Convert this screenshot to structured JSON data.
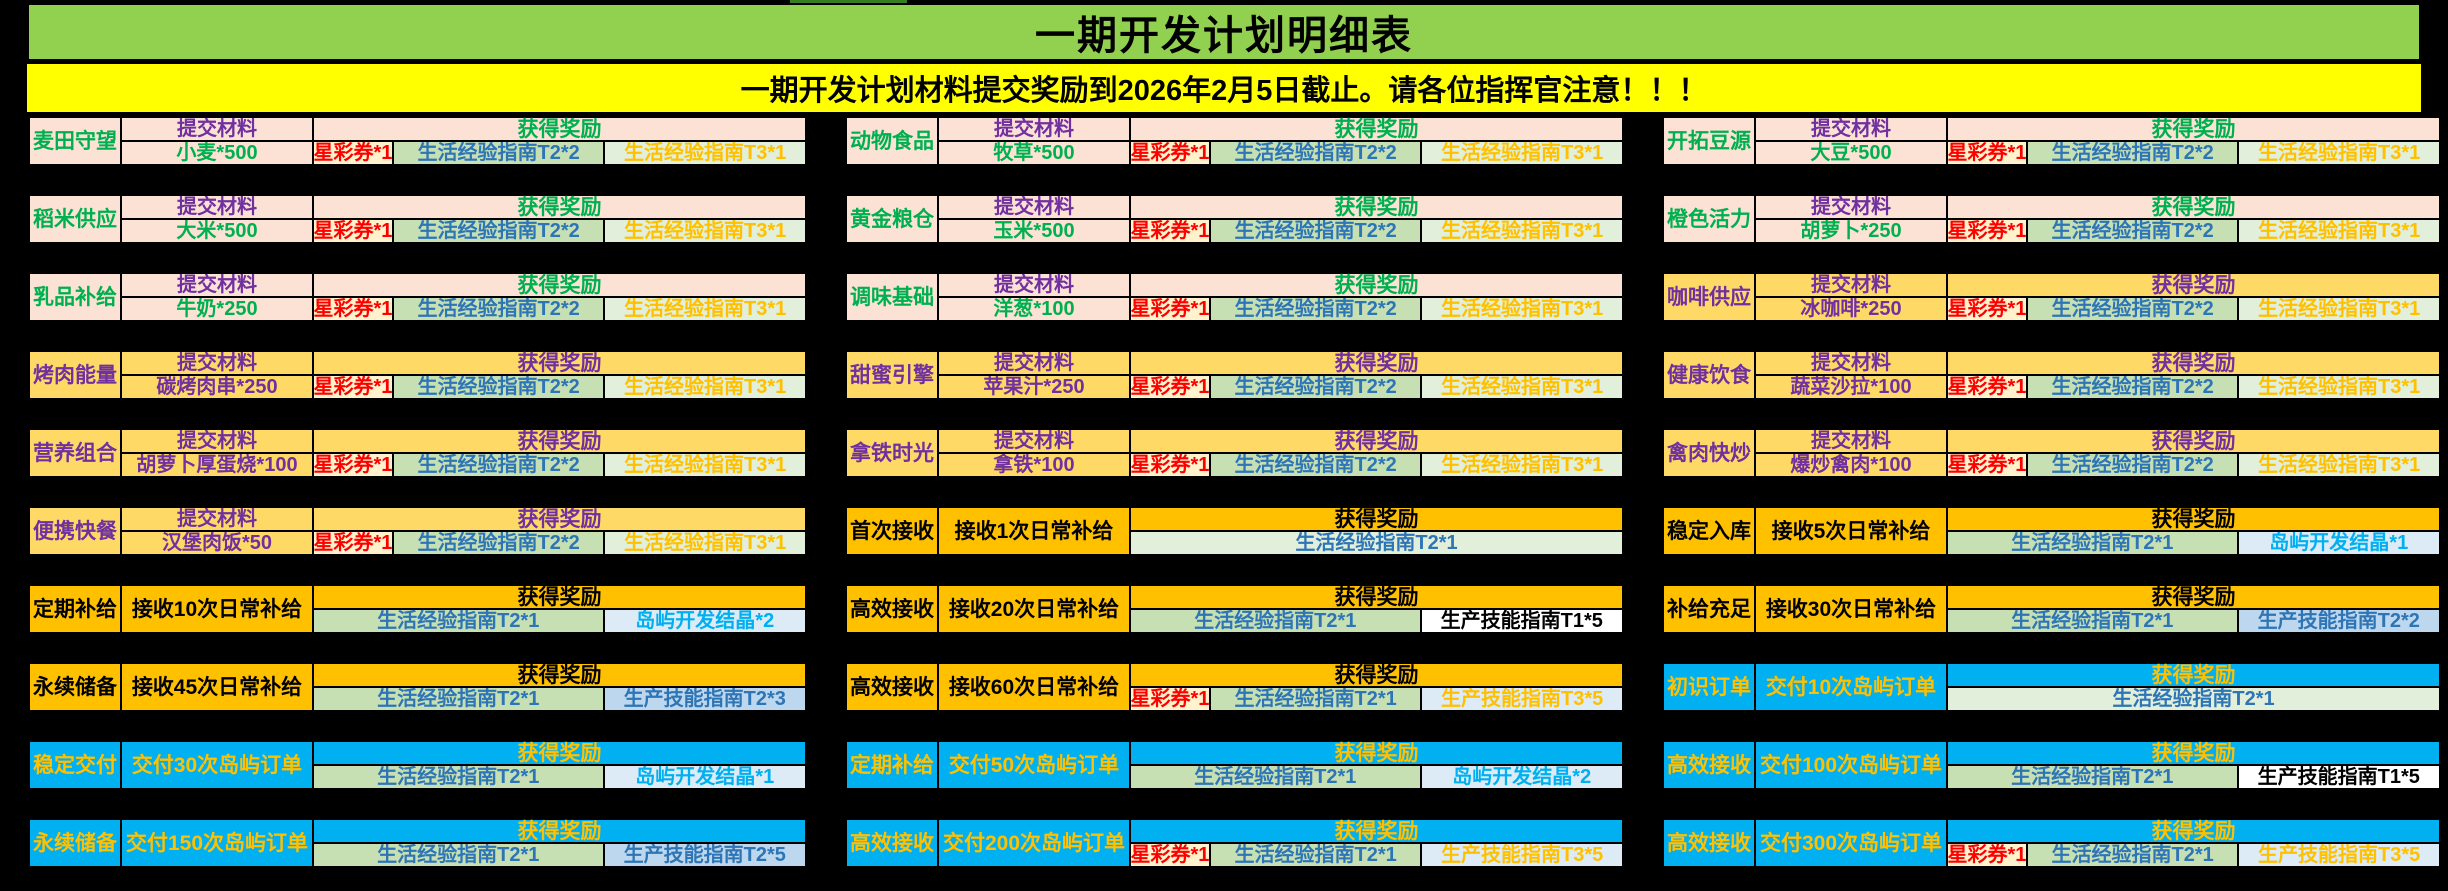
{
  "title": "一期开发计划明细表",
  "banner": "一期开发计划材料提交奖励到2026年2月5日截止。请各位指挥官注意！！！",
  "labels": {
    "submit": "提交材料",
    "reward": "获得奖励"
  },
  "colors": {
    "title_bg": "#92D050",
    "banner_bg": "#FFFF00",
    "page_bg": "#000000",
    "border": "#000000"
  },
  "themes": {
    "pink": {
      "bg": "#FBE2D5",
      "label": "#00B050",
      "item": "#00B050",
      "submit": "#7030A0",
      "reward": "#00B050"
    },
    "yellow": {
      "bg": "#FFD966",
      "label": "#7030A0",
      "item": "#7030A0",
      "submit": "#7030A0",
      "reward": "#7030A0"
    },
    "orange": {
      "bg": "#FFC000",
      "label": "#000000",
      "item": "#000000",
      "submit": "#000000",
      "reward": "#000000"
    },
    "blue": {
      "bg": "#00B0F0",
      "label": "#FFC000",
      "item": "#FFC000",
      "submit": "#FFC000",
      "reward": "#FFC000"
    }
  },
  "reward_styles": {
    "ticket": {
      "bg": "#FFF2CC",
      "fg": "#FF0000"
    },
    "life": {
      "bg": "#C6E0B4",
      "fg": "#2E75B6"
    },
    "life_pale": {
      "bg": "#E2EFDA",
      "fg": "#2E75B6"
    },
    "life3": {
      "bg": "#E2EFDA",
      "fg": "#FFC000"
    },
    "crystal": {
      "bg": "#DDEBF7",
      "fg": "#00B0F0"
    },
    "prod_blue": {
      "bg": "#BDD7EE",
      "fg": "#2E75B6"
    },
    "prod_white": {
      "bg": "#FFFFFF",
      "fg": "#000000"
    },
    "prod_gold": {
      "bg": "#DDEBF7",
      "fg": "#FFC000"
    }
  },
  "grid": {
    "columns": [
      {
        "blocks": [
          {
            "kind": "submit",
            "theme": "pink",
            "name": "麦田守望",
            "item": "小麦*500",
            "rewards": [
              {
                "text": "星彩券*1",
                "style": "ticket",
                "grow": 16
              },
              {
                "text": "生活经验指南T2*2",
                "style": "life",
                "grow": 43
              },
              {
                "text": "生活经验指南T3*1",
                "style": "life3",
                "grow": 41
              }
            ]
          },
          {
            "kind": "submit",
            "theme": "pink",
            "name": "稻米供应",
            "item": "大米*500",
            "rewards": [
              {
                "text": "星彩券*1",
                "style": "ticket",
                "grow": 16
              },
              {
                "text": "生活经验指南T2*2",
                "style": "life",
                "grow": 43
              },
              {
                "text": "生活经验指南T3*1",
                "style": "life3",
                "grow": 41
              }
            ]
          },
          {
            "kind": "submit",
            "theme": "pink",
            "name": "乳品补给",
            "item": "牛奶*250",
            "rewards": [
              {
                "text": "星彩券*1",
                "style": "ticket",
                "grow": 16
              },
              {
                "text": "生活经验指南T2*2",
                "style": "life",
                "grow": 43
              },
              {
                "text": "生活经验指南T3*1",
                "style": "life3",
                "grow": 41
              }
            ]
          },
          {
            "kind": "submit",
            "theme": "yellow",
            "name": "烤肉能量",
            "item": "碳烤肉串*250",
            "rewards": [
              {
                "text": "星彩券*1",
                "style": "ticket",
                "grow": 16
              },
              {
                "text": "生活经验指南T2*2",
                "style": "life",
                "grow": 43
              },
              {
                "text": "生活经验指南T3*1",
                "style": "life3",
                "grow": 41
              }
            ]
          },
          {
            "kind": "submit",
            "theme": "yellow",
            "name": "营养组合",
            "item": "胡萝卜厚蛋烧*100",
            "rewards": [
              {
                "text": "星彩券*1",
                "style": "ticket",
                "grow": 16
              },
              {
                "text": "生活经验指南T2*2",
                "style": "life",
                "grow": 43
              },
              {
                "text": "生活经验指南T3*1",
                "style": "life3",
                "grow": 41
              }
            ]
          },
          {
            "kind": "submit",
            "theme": "yellow",
            "name": "便携快餐",
            "item": "汉堡肉饭*50",
            "rewards": [
              {
                "text": "星彩券*1",
                "style": "ticket",
                "grow": 16
              },
              {
                "text": "生活经验指南T2*2",
                "style": "life",
                "grow": 43
              },
              {
                "text": "生活经验指南T3*1",
                "style": "life3",
                "grow": 41
              }
            ]
          },
          {
            "kind": "goal",
            "theme": "orange",
            "name": "定期补给",
            "goal": "接收10次日常补给",
            "rewards": [
              {
                "text": "生活经验指南T2*1",
                "style": "life",
                "grow": 59
              },
              {
                "text": "岛屿开发结晶*2",
                "style": "crystal",
                "grow": 41
              }
            ]
          },
          {
            "kind": "goal",
            "theme": "orange",
            "name": "永续储备",
            "goal": "接收45次日常补给",
            "rewards": [
              {
                "text": "生活经验指南T2*1",
                "style": "life",
                "grow": 59
              },
              {
                "text": "生产技能指南T2*3",
                "style": "prod_blue",
                "grow": 41
              }
            ]
          },
          {
            "kind": "goal",
            "theme": "blue",
            "name": "稳定交付",
            "goal": "交付30次岛屿订单",
            "rewards": [
              {
                "text": "生活经验指南T2*1",
                "style": "life",
                "grow": 59
              },
              {
                "text": "岛屿开发结晶*1",
                "style": "crystal",
                "grow": 41
              }
            ]
          },
          {
            "kind": "goal",
            "theme": "blue",
            "name": "永续储备",
            "goal": "交付150次岛屿订单",
            "rewards": [
              {
                "text": "生活经验指南T2*1",
                "style": "life",
                "grow": 59
              },
              {
                "text": "生产技能指南T2*5",
                "style": "prod_blue",
                "grow": 41
              }
            ]
          }
        ]
      },
      {
        "blocks": [
          {
            "kind": "submit",
            "theme": "pink",
            "name": "动物食品",
            "item": "牧草*500",
            "rewards": [
              {
                "text": "星彩券*1",
                "style": "ticket",
                "grow": 16
              },
              {
                "text": "生活经验指南T2*2",
                "style": "life",
                "grow": 43
              },
              {
                "text": "生活经验指南T3*1",
                "style": "life3",
                "grow": 41
              }
            ]
          },
          {
            "kind": "submit",
            "theme": "pink",
            "name": "黄金粮仓",
            "item": "玉米*500",
            "rewards": [
              {
                "text": "星彩券*1",
                "style": "ticket",
                "grow": 16
              },
              {
                "text": "生活经验指南T2*2",
                "style": "life",
                "grow": 43
              },
              {
                "text": "生活经验指南T3*1",
                "style": "life3",
                "grow": 41
              }
            ]
          },
          {
            "kind": "submit",
            "theme": "pink",
            "name": "调味基础",
            "item": "洋葱*100",
            "rewards": [
              {
                "text": "星彩券*1",
                "style": "ticket",
                "grow": 16
              },
              {
                "text": "生活经验指南T2*2",
                "style": "life",
                "grow": 43
              },
              {
                "text": "生活经验指南T3*1",
                "style": "life3",
                "grow": 41
              }
            ]
          },
          {
            "kind": "submit",
            "theme": "yellow",
            "name": "甜蜜引擎",
            "item": "苹果汁*250",
            "rewards": [
              {
                "text": "星彩券*1",
                "style": "ticket",
                "grow": 16
              },
              {
                "text": "生活经验指南T2*2",
                "style": "life",
                "grow": 43
              },
              {
                "text": "生活经验指南T3*1",
                "style": "life3",
                "grow": 41
              }
            ]
          },
          {
            "kind": "submit",
            "theme": "yellow",
            "name": "拿铁时光",
            "item": "拿铁*100",
            "rewards": [
              {
                "text": "星彩券*1",
                "style": "ticket",
                "grow": 16
              },
              {
                "text": "生活经验指南T2*2",
                "style": "life",
                "grow": 43
              },
              {
                "text": "生活经验指南T3*1",
                "style": "life3",
                "grow": 41
              }
            ]
          },
          {
            "kind": "goal",
            "theme": "orange",
            "name": "首次接收",
            "goal": "接收1次日常补给",
            "rewards": [
              {
                "text": "生活经验指南T2*1",
                "style": "life_pale",
                "grow": 100
              }
            ]
          },
          {
            "kind": "goal",
            "theme": "orange",
            "name": "高效接收",
            "goal": "接收20次日常补给",
            "rewards": [
              {
                "text": "生活经验指南T2*1",
                "style": "life",
                "grow": 59
              },
              {
                "text": "生产技能指南T1*5",
                "style": "prod_white",
                "grow": 41
              }
            ]
          },
          {
            "kind": "goal",
            "theme": "orange",
            "name": "高效接收",
            "goal": "接收60次日常补给",
            "rewards": [
              {
                "text": "星彩券*1",
                "style": "ticket",
                "grow": 16
              },
              {
                "text": "生活经验指南T2*1",
                "style": "life",
                "grow": 43
              },
              {
                "text": "生产技能指南T3*5",
                "style": "prod_gold",
                "grow": 41
              }
            ]
          },
          {
            "kind": "goal",
            "theme": "blue",
            "name": "定期补给",
            "goal": "交付50次岛屿订单",
            "rewards": [
              {
                "text": "生活经验指南T2*1",
                "style": "life",
                "grow": 59
              },
              {
                "text": "岛屿开发结晶*2",
                "style": "crystal",
                "grow": 41
              }
            ]
          },
          {
            "kind": "goal",
            "theme": "blue",
            "name": "高效接收",
            "goal": "交付200次岛屿订单",
            "rewards": [
              {
                "text": "星彩券*1",
                "style": "ticket",
                "grow": 16
              },
              {
                "text": "生活经验指南T2*1",
                "style": "life",
                "grow": 43
              },
              {
                "text": "生产技能指南T3*5",
                "style": "prod_gold",
                "grow": 41
              }
            ]
          }
        ]
      },
      {
        "blocks": [
          {
            "kind": "submit",
            "theme": "pink",
            "name": "开拓豆源",
            "item": "大豆*500",
            "rewards": [
              {
                "text": "星彩券*1",
                "style": "ticket",
                "grow": 16
              },
              {
                "text": "生活经验指南T2*2",
                "style": "life",
                "grow": 43
              },
              {
                "text": "生活经验指南T3*1",
                "style": "life3",
                "grow": 41
              }
            ]
          },
          {
            "kind": "submit",
            "theme": "pink",
            "name": "橙色活力",
            "item": "胡萝卜*250",
            "rewards": [
              {
                "text": "星彩券*1",
                "style": "ticket",
                "grow": 16
              },
              {
                "text": "生活经验指南T2*2",
                "style": "life",
                "grow": 43
              },
              {
                "text": "生活经验指南T3*1",
                "style": "life3",
                "grow": 41
              }
            ]
          },
          {
            "kind": "submit",
            "theme": "yellow",
            "name": "咖啡供应",
            "item": "冰咖啡*250",
            "rewards": [
              {
                "text": "星彩券*1",
                "style": "ticket",
                "grow": 16
              },
              {
                "text": "生活经验指南T2*2",
                "style": "life",
                "grow": 43
              },
              {
                "text": "生活经验指南T3*1",
                "style": "life3",
                "grow": 41
              }
            ]
          },
          {
            "kind": "submit",
            "theme": "yellow",
            "name": "健康饮食",
            "item": "蔬菜沙拉*100",
            "rewards": [
              {
                "text": "星彩券*1",
                "style": "ticket",
                "grow": 16
              },
              {
                "text": "生活经验指南T2*2",
                "style": "life",
                "grow": 43
              },
              {
                "text": "生活经验指南T3*1",
                "style": "life3",
                "grow": 41
              }
            ]
          },
          {
            "kind": "submit",
            "theme": "yellow",
            "name": "禽肉快炒",
            "item": "爆炒禽肉*100",
            "rewards": [
              {
                "text": "星彩券*1",
                "style": "ticket",
                "grow": 16
              },
              {
                "text": "生活经验指南T2*2",
                "style": "life",
                "grow": 43
              },
              {
                "text": "生活经验指南T3*1",
                "style": "life3",
                "grow": 41
              }
            ]
          },
          {
            "kind": "goal",
            "theme": "orange",
            "name": "稳定入库",
            "goal": "接收5次日常补给",
            "rewards": [
              {
                "text": "生活经验指南T2*1",
                "style": "life",
                "grow": 59
              },
              {
                "text": "岛屿开发结晶*1",
                "style": "crystal",
                "grow": 41
              }
            ]
          },
          {
            "kind": "goal",
            "theme": "orange",
            "name": "补给充足",
            "goal": "接收30次日常补给",
            "rewards": [
              {
                "text": "生活经验指南T2*1",
                "style": "life",
                "grow": 59
              },
              {
                "text": "生产技能指南T2*2",
                "style": "prod_blue",
                "grow": 41
              }
            ]
          },
          {
            "kind": "goal",
            "theme": "blue",
            "name": "初识订单",
            "goal": "交付10次岛屿订单",
            "rewards": [
              {
                "text": "生活经验指南T2*1",
                "style": "life_pale",
                "grow": 100
              }
            ]
          },
          {
            "kind": "goal",
            "theme": "blue",
            "name": "高效接收",
            "goal": "交付100次岛屿订单",
            "rewards": [
              {
                "text": "生活经验指南T2*1",
                "style": "life",
                "grow": 59
              },
              {
                "text": "生产技能指南T1*5",
                "style": "prod_white",
                "grow": 41
              }
            ]
          },
          {
            "kind": "goal",
            "theme": "blue",
            "name": "高效接收",
            "goal": "交付300次岛屿订单",
            "rewards": [
              {
                "text": "星彩券*1",
                "style": "ticket",
                "grow": 16
              },
              {
                "text": "生活经验指南T2*1",
                "style": "life",
                "grow": 43
              },
              {
                "text": "生产技能指南T3*5",
                "style": "prod_gold",
                "grow": 41
              }
            ]
          }
        ]
      }
    ]
  }
}
